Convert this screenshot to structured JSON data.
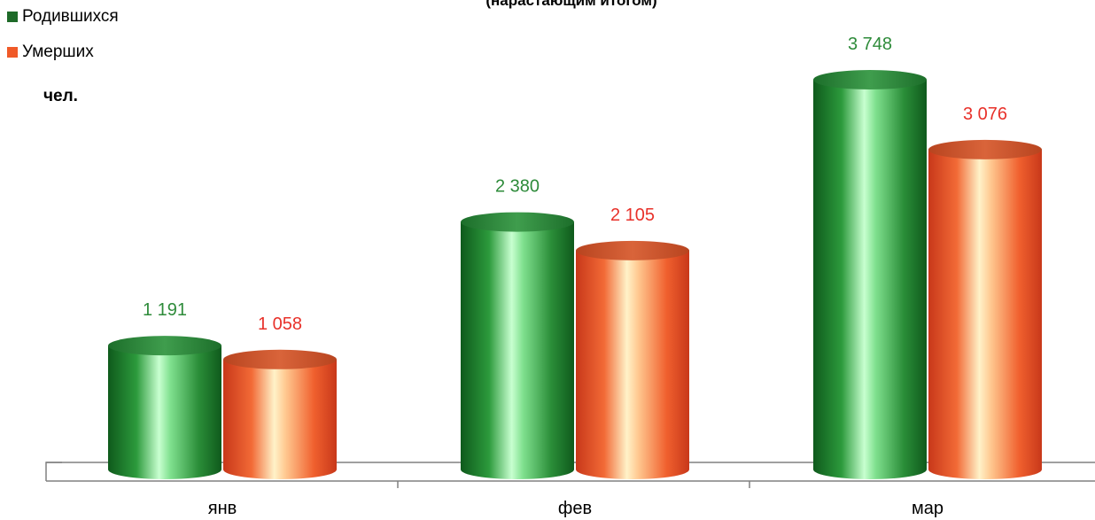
{
  "chart_data": {
    "type": "bar",
    "title": "(нарастающим итогом)",
    "ylabel": "чел.",
    "categories": [
      "янв",
      "фев",
      "мар"
    ],
    "series": [
      {
        "name": "Родившихся",
        "values": [
          1191,
          2380,
          3748
        ],
        "labels": [
          "1 191",
          "2 380",
          "3 748"
        ]
      },
      {
        "name": "Умерших",
        "values": [
          1058,
          2105,
          3076
        ],
        "labels": [
          "1 058",
          "2 105",
          "3 076"
        ]
      }
    ],
    "ylim": [
      0,
      4000
    ],
    "grid": false,
    "legend": "top-left",
    "colors": {
      "births": "#1e7a2e",
      "deaths": "#f0562a",
      "births_label": "#2e8b3a",
      "deaths_label": "#e8312a"
    }
  }
}
